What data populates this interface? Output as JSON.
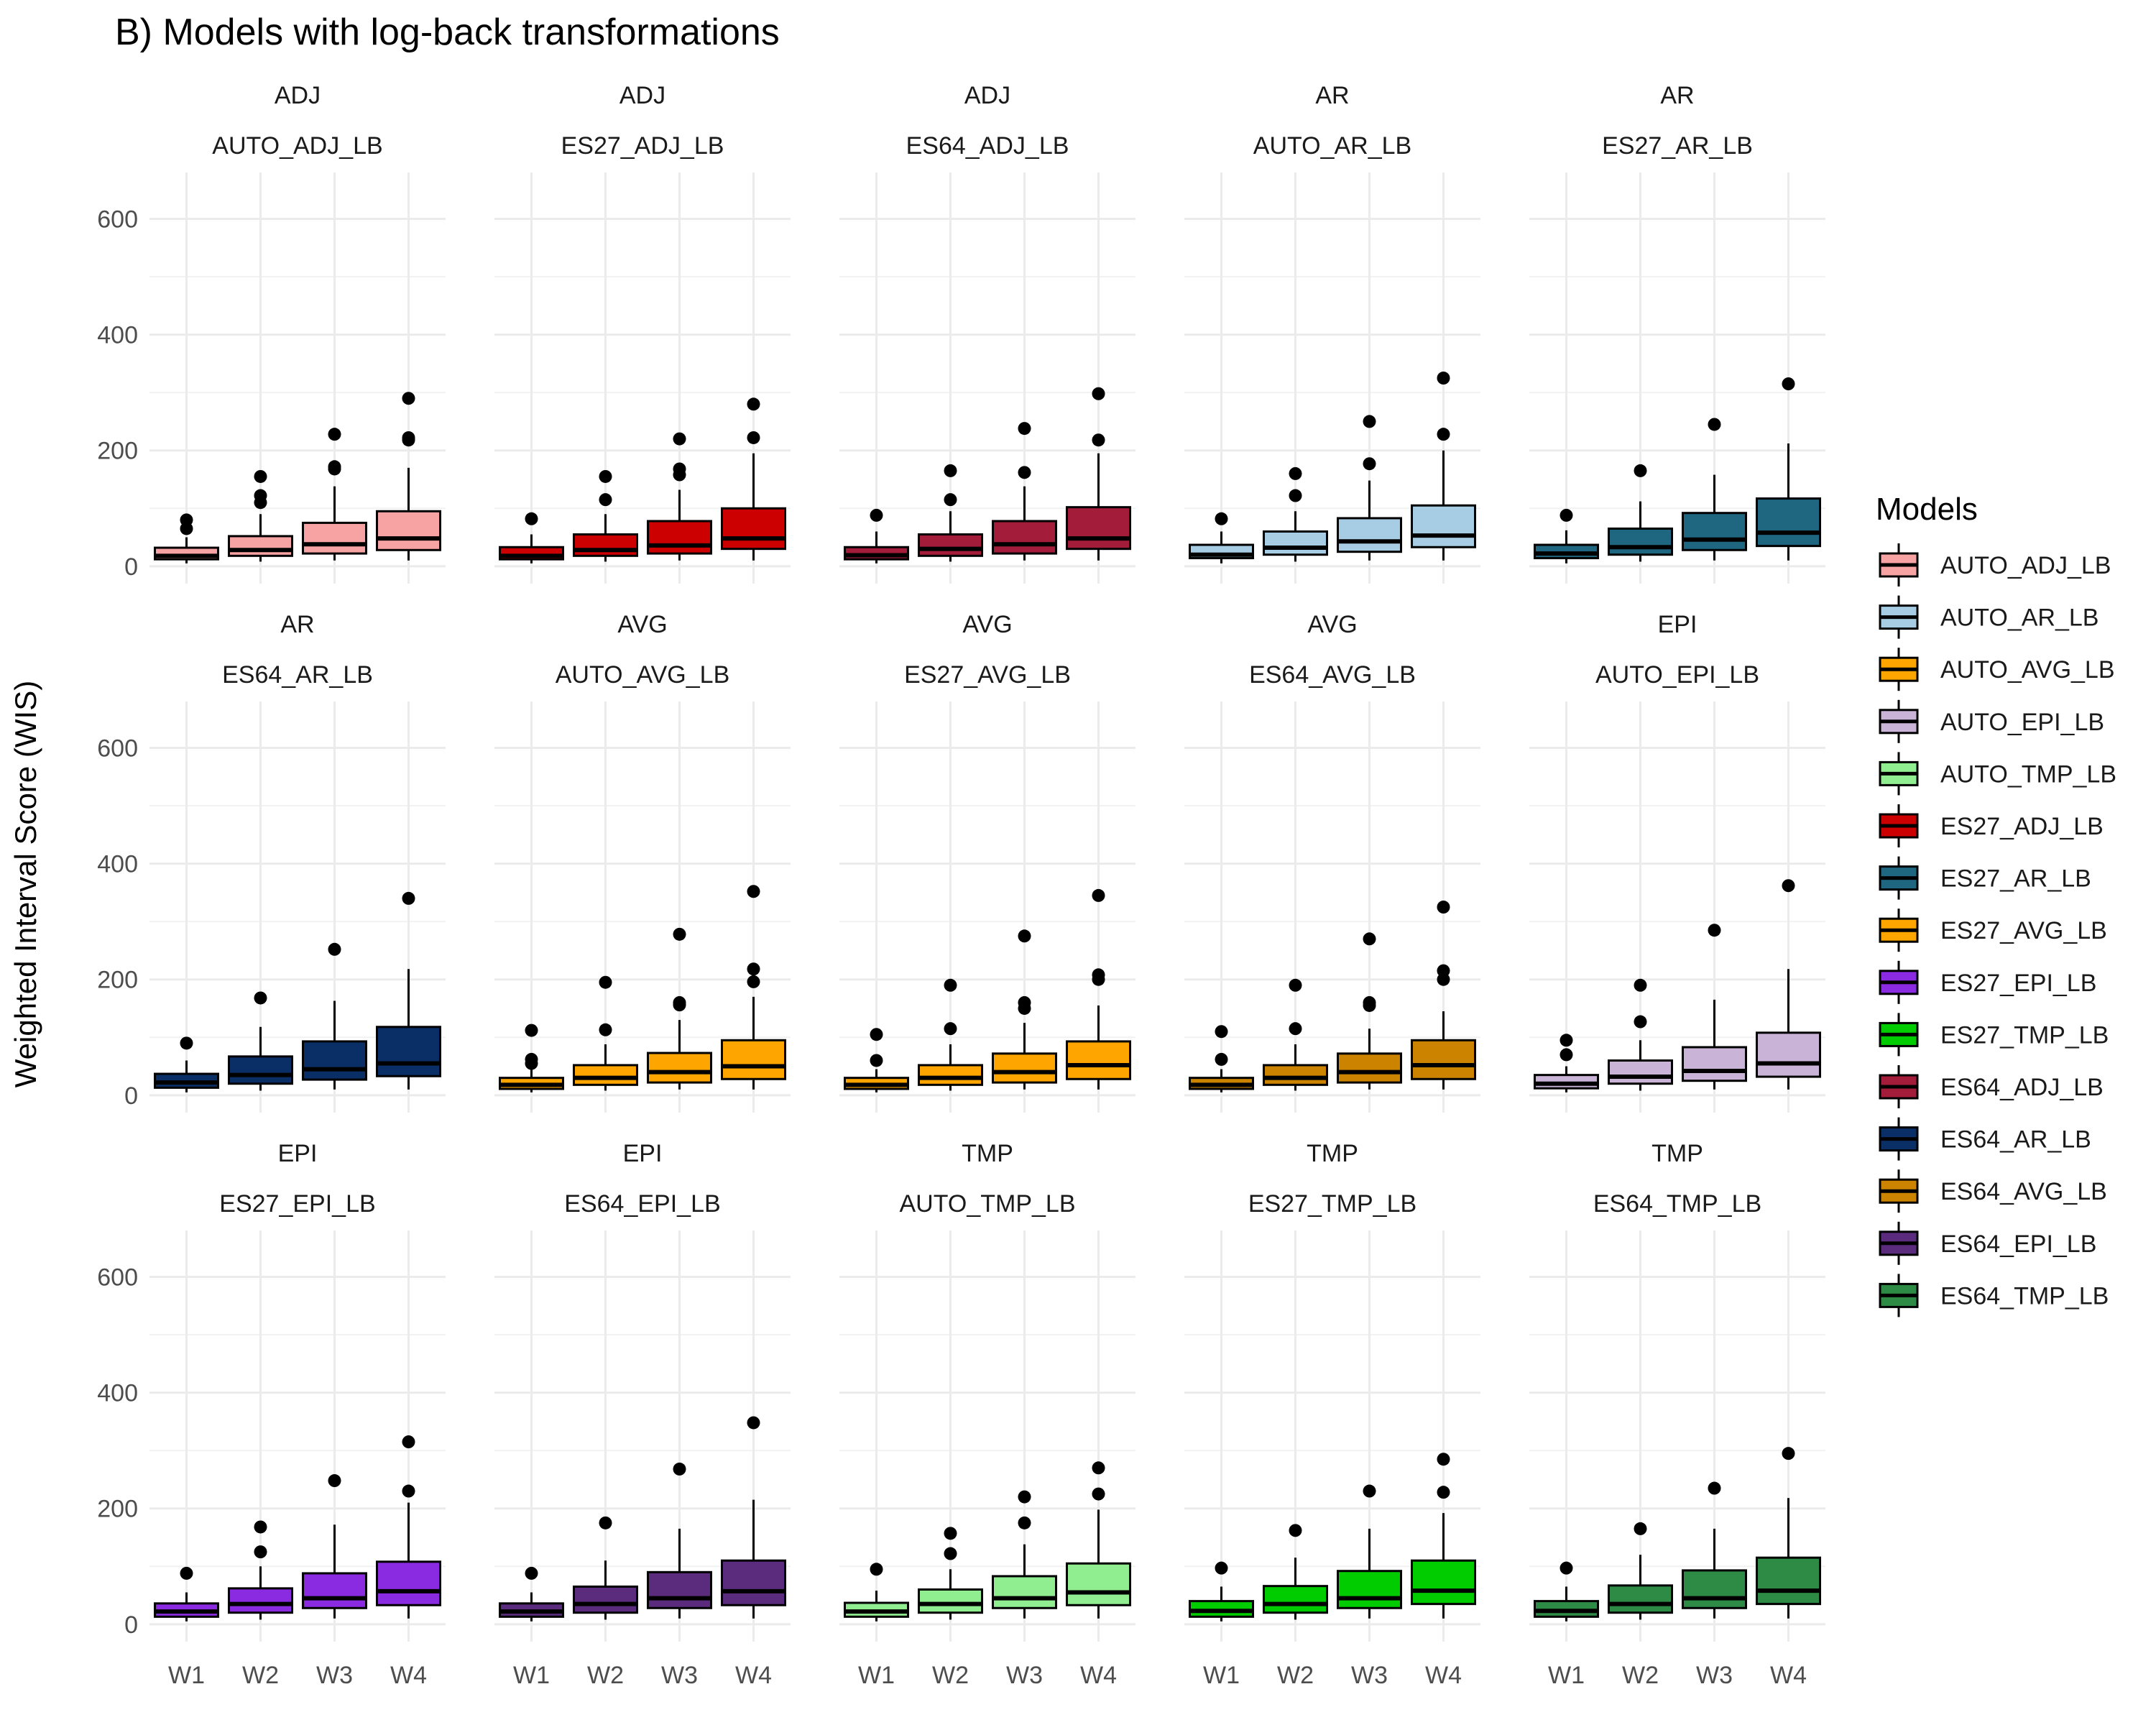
{
  "chart_data": {
    "type": "box",
    "title": "B) Models with log-back transformations",
    "ylabel": "Weighted Interval Score (WIS)",
    "xlabel": "",
    "ylim": [
      -30,
      680
    ],
    "yticks": [
      0,
      200,
      400,
      600
    ],
    "categories": [
      "W1",
      "W2",
      "W3",
      "W4"
    ],
    "grid": true,
    "legend": {
      "title": "Models",
      "position": "right",
      "entries": [
        {
          "name": "AUTO_ADJ_LB",
          "color": "#F8A3A3"
        },
        {
          "name": "AUTO_AR_LB",
          "color": "#A6CDE3"
        },
        {
          "name": "AUTO_AVG_LB",
          "color": "#FFA500"
        },
        {
          "name": "AUTO_EPI_LB",
          "color": "#C9B3D6"
        },
        {
          "name": "AUTO_TMP_LB",
          "color": "#90EE90"
        },
        {
          "name": "ES27_ADJ_LB",
          "color": "#CC0000"
        },
        {
          "name": "ES27_AR_LB",
          "color": "#1F6680"
        },
        {
          "name": "ES27_AVG_LB",
          "color": "#FFA500"
        },
        {
          "name": "ES27_EPI_LB",
          "color": "#8A2BE2"
        },
        {
          "name": "ES27_TMP_LB",
          "color": "#00CC00"
        },
        {
          "name": "ES64_ADJ_LB",
          "color": "#A31C3A"
        },
        {
          "name": "ES64_AR_LB",
          "color": "#0A2F66"
        },
        {
          "name": "ES64_AVG_LB",
          "color": "#CC8400"
        },
        {
          "name": "ES64_EPI_LB",
          "color": "#5B2C7E"
        },
        {
          "name": "ES64_TMP_LB",
          "color": "#2E8B45"
        }
      ]
    },
    "panels": [
      {
        "group": "ADJ",
        "model": "AUTO_ADJ_LB",
        "color": "#F8A3A3",
        "boxes": [
          {
            "q1": 12,
            "median": 18,
            "q3": 32,
            "lower": 5,
            "upper": 50,
            "outliers": [
              80,
              65
            ]
          },
          {
            "q1": 18,
            "median": 28,
            "q3": 52,
            "lower": 8,
            "upper": 90,
            "outliers": [
              155,
              122,
              110
            ]
          },
          {
            "q1": 22,
            "median": 38,
            "q3": 75,
            "lower": 10,
            "upper": 138,
            "outliers": [
              228,
              172,
              168
            ]
          },
          {
            "q1": 28,
            "median": 48,
            "q3": 95,
            "lower": 10,
            "upper": 170,
            "outliers": [
              290,
              222,
              218
            ]
          }
        ]
      },
      {
        "group": "ADJ",
        "model": "ES27_ADJ_LB",
        "color": "#CC0000",
        "boxes": [
          {
            "q1": 12,
            "median": 18,
            "q3": 33,
            "lower": 5,
            "upper": 55,
            "outliers": [
              82
            ]
          },
          {
            "q1": 18,
            "median": 28,
            "q3": 55,
            "lower": 8,
            "upper": 90,
            "outliers": [
              155,
              115
            ]
          },
          {
            "q1": 22,
            "median": 36,
            "q3": 78,
            "lower": 10,
            "upper": 132,
            "outliers": [
              220,
              168,
              158
            ]
          },
          {
            "q1": 30,
            "median": 48,
            "q3": 100,
            "lower": 10,
            "upper": 195,
            "outliers": [
              280,
              222
            ]
          }
        ]
      },
      {
        "group": "ADJ",
        "model": "ES64_ADJ_LB",
        "color": "#A31C3A",
        "boxes": [
          {
            "q1": 12,
            "median": 19,
            "q3": 33,
            "lower": 5,
            "upper": 60,
            "outliers": [
              88
            ]
          },
          {
            "q1": 18,
            "median": 30,
            "q3": 55,
            "lower": 8,
            "upper": 95,
            "outliers": [
              165,
              115
            ]
          },
          {
            "q1": 22,
            "median": 38,
            "q3": 78,
            "lower": 10,
            "upper": 138,
            "outliers": [
              238,
              162
            ]
          },
          {
            "q1": 30,
            "median": 48,
            "q3": 102,
            "lower": 10,
            "upper": 195,
            "outliers": [
              298,
              218
            ]
          }
        ]
      },
      {
        "group": "AR",
        "model": "AUTO_AR_LB",
        "color": "#A6CDE3",
        "boxes": [
          {
            "q1": 14,
            "median": 20,
            "q3": 37,
            "lower": 5,
            "upper": 60,
            "outliers": [
              82
            ]
          },
          {
            "q1": 20,
            "median": 32,
            "q3": 60,
            "lower": 8,
            "upper": 95,
            "outliers": [
              160,
              122
            ]
          },
          {
            "q1": 25,
            "median": 43,
            "q3": 83,
            "lower": 10,
            "upper": 148,
            "outliers": [
              250,
              177
            ]
          },
          {
            "q1": 33,
            "median": 53,
            "q3": 105,
            "lower": 10,
            "upper": 200,
            "outliers": [
              325,
              228
            ]
          }
        ]
      },
      {
        "group": "AR",
        "model": "ES27_AR_LB",
        "color": "#1F6680",
        "boxes": [
          {
            "q1": 14,
            "median": 22,
            "q3": 37,
            "lower": 5,
            "upper": 62,
            "outliers": [
              88
            ]
          },
          {
            "q1": 20,
            "median": 33,
            "q3": 65,
            "lower": 8,
            "upper": 112,
            "outliers": [
              165
            ]
          },
          {
            "q1": 28,
            "median": 46,
            "q3": 92,
            "lower": 10,
            "upper": 158,
            "outliers": [
              245
            ]
          },
          {
            "q1": 35,
            "median": 58,
            "q3": 117,
            "lower": 10,
            "upper": 212,
            "outliers": [
              315
            ]
          }
        ]
      },
      {
        "group": "AR",
        "model": "ES64_AR_LB",
        "color": "#0A2F66",
        "boxes": [
          {
            "q1": 13,
            "median": 22,
            "q3": 37,
            "lower": 5,
            "upper": 60,
            "outliers": [
              90
            ]
          },
          {
            "q1": 20,
            "median": 35,
            "q3": 67,
            "lower": 8,
            "upper": 118,
            "outliers": [
              168
            ]
          },
          {
            "q1": 27,
            "median": 45,
            "q3": 93,
            "lower": 10,
            "upper": 163,
            "outliers": [
              252
            ]
          },
          {
            "q1": 33,
            "median": 55,
            "q3": 118,
            "lower": 10,
            "upper": 218,
            "outliers": [
              340
            ]
          }
        ]
      },
      {
        "group": "AVG",
        "model": "AUTO_AVG_LB",
        "color": "#FFA500",
        "boxes": [
          {
            "q1": 11,
            "median": 18,
            "q3": 30,
            "lower": 5,
            "upper": 45,
            "outliers": [
              112,
              62,
              55
            ]
          },
          {
            "q1": 18,
            "median": 30,
            "q3": 52,
            "lower": 8,
            "upper": 88,
            "outliers": [
              195,
              113
            ]
          },
          {
            "q1": 22,
            "median": 40,
            "q3": 73,
            "lower": 10,
            "upper": 130,
            "outliers": [
              278,
              160,
              156
            ]
          },
          {
            "q1": 28,
            "median": 50,
            "q3": 95,
            "lower": 10,
            "upper": 170,
            "outliers": [
              352,
              218,
              196
            ]
          }
        ]
      },
      {
        "group": "AVG",
        "model": "ES27_AVG_LB",
        "color": "#FFA500",
        "boxes": [
          {
            "q1": 11,
            "median": 18,
            "q3": 30,
            "lower": 5,
            "upper": 45,
            "outliers": [
              105,
              60
            ]
          },
          {
            "q1": 18,
            "median": 30,
            "q3": 52,
            "lower": 8,
            "upper": 88,
            "outliers": [
              190,
              115
            ]
          },
          {
            "q1": 22,
            "median": 40,
            "q3": 72,
            "lower": 10,
            "upper": 125,
            "outliers": [
              275,
              160,
              150
            ]
          },
          {
            "q1": 28,
            "median": 52,
            "q3": 93,
            "lower": 10,
            "upper": 155,
            "outliers": [
              345,
              208,
              200
            ]
          }
        ]
      },
      {
        "group": "AVG",
        "model": "ES64_AVG_LB",
        "color": "#CC8400",
        "boxes": [
          {
            "q1": 11,
            "median": 18,
            "q3": 30,
            "lower": 5,
            "upper": 45,
            "outliers": [
              110,
              62
            ]
          },
          {
            "q1": 18,
            "median": 30,
            "q3": 52,
            "lower": 8,
            "upper": 88,
            "outliers": [
              190,
              115
            ]
          },
          {
            "q1": 22,
            "median": 40,
            "q3": 72,
            "lower": 10,
            "upper": 115,
            "outliers": [
              270,
              160,
              155
            ]
          },
          {
            "q1": 28,
            "median": 52,
            "q3": 95,
            "lower": 10,
            "upper": 145,
            "outliers": [
              325,
              215,
              200
            ]
          }
        ]
      },
      {
        "group": "EPI",
        "model": "AUTO_EPI_LB",
        "color": "#C9B3D6",
        "boxes": [
          {
            "q1": 12,
            "median": 20,
            "q3": 35,
            "lower": 5,
            "upper": 50,
            "outliers": [
              95,
              70
            ]
          },
          {
            "q1": 20,
            "median": 32,
            "q3": 60,
            "lower": 8,
            "upper": 95,
            "outliers": [
              190,
              127
            ]
          },
          {
            "q1": 25,
            "median": 42,
            "q3": 83,
            "lower": 10,
            "upper": 165,
            "outliers": [
              285
            ]
          },
          {
            "q1": 32,
            "median": 55,
            "q3": 108,
            "lower": 10,
            "upper": 218,
            "outliers": [
              362
            ]
          }
        ]
      },
      {
        "group": "EPI",
        "model": "ES27_EPI_LB",
        "color": "#8A2BE2",
        "boxes": [
          {
            "q1": 13,
            "median": 22,
            "q3": 36,
            "lower": 5,
            "upper": 55,
            "outliers": [
              88
            ]
          },
          {
            "q1": 20,
            "median": 35,
            "q3": 62,
            "lower": 8,
            "upper": 100,
            "outliers": [
              168,
              125
            ]
          },
          {
            "q1": 28,
            "median": 45,
            "q3": 88,
            "lower": 10,
            "upper": 172,
            "outliers": [
              248
            ]
          },
          {
            "q1": 33,
            "median": 57,
            "q3": 108,
            "lower": 10,
            "upper": 210,
            "outliers": [
              315,
              230
            ]
          }
        ]
      },
      {
        "group": "EPI",
        "model": "ES64_EPI_LB",
        "color": "#5B2C7E",
        "boxes": [
          {
            "q1": 13,
            "median": 22,
            "q3": 36,
            "lower": 5,
            "upper": 55,
            "outliers": [
              88
            ]
          },
          {
            "q1": 20,
            "median": 35,
            "q3": 65,
            "lower": 8,
            "upper": 110,
            "outliers": [
              175
            ]
          },
          {
            "q1": 28,
            "median": 45,
            "q3": 90,
            "lower": 10,
            "upper": 165,
            "outliers": [
              268
            ]
          },
          {
            "q1": 33,
            "median": 57,
            "q3": 110,
            "lower": 10,
            "upper": 215,
            "outliers": [
              348
            ]
          }
        ]
      },
      {
        "group": "TMP",
        "model": "AUTO_TMP_LB",
        "color": "#90EE90",
        "boxes": [
          {
            "q1": 13,
            "median": 22,
            "q3": 37,
            "lower": 5,
            "upper": 58,
            "outliers": [
              95
            ]
          },
          {
            "q1": 20,
            "median": 35,
            "q3": 60,
            "lower": 8,
            "upper": 95,
            "outliers": [
              157,
              122
            ]
          },
          {
            "q1": 28,
            "median": 45,
            "q3": 83,
            "lower": 10,
            "upper": 138,
            "outliers": [
              220,
              175
            ]
          },
          {
            "q1": 33,
            "median": 55,
            "q3": 105,
            "lower": 10,
            "upper": 198,
            "outliers": [
              270,
              225
            ]
          }
        ]
      },
      {
        "group": "TMP",
        "model": "ES27_TMP_LB",
        "color": "#00CC00",
        "boxes": [
          {
            "q1": 13,
            "median": 23,
            "q3": 40,
            "lower": 5,
            "upper": 65,
            "outliers": [
              97
            ]
          },
          {
            "q1": 20,
            "median": 35,
            "q3": 66,
            "lower": 8,
            "upper": 115,
            "outliers": [
              162
            ]
          },
          {
            "q1": 28,
            "median": 45,
            "q3": 92,
            "lower": 10,
            "upper": 165,
            "outliers": [
              230
            ]
          },
          {
            "q1": 35,
            "median": 58,
            "q3": 110,
            "lower": 10,
            "upper": 192,
            "outliers": [
              285,
              228
            ]
          }
        ]
      },
      {
        "group": "TMP",
        "model": "ES64_TMP_LB",
        "color": "#2E8B45",
        "boxes": [
          {
            "q1": 13,
            "median": 23,
            "q3": 40,
            "lower": 5,
            "upper": 65,
            "outliers": [
              97
            ]
          },
          {
            "q1": 20,
            "median": 35,
            "q3": 67,
            "lower": 8,
            "upper": 120,
            "outliers": [
              165
            ]
          },
          {
            "q1": 28,
            "median": 45,
            "q3": 93,
            "lower": 10,
            "upper": 165,
            "outliers": [
              235
            ]
          },
          {
            "q1": 35,
            "median": 58,
            "q3": 115,
            "lower": 10,
            "upper": 218,
            "outliers": [
              295
            ]
          }
        ]
      }
    ]
  }
}
